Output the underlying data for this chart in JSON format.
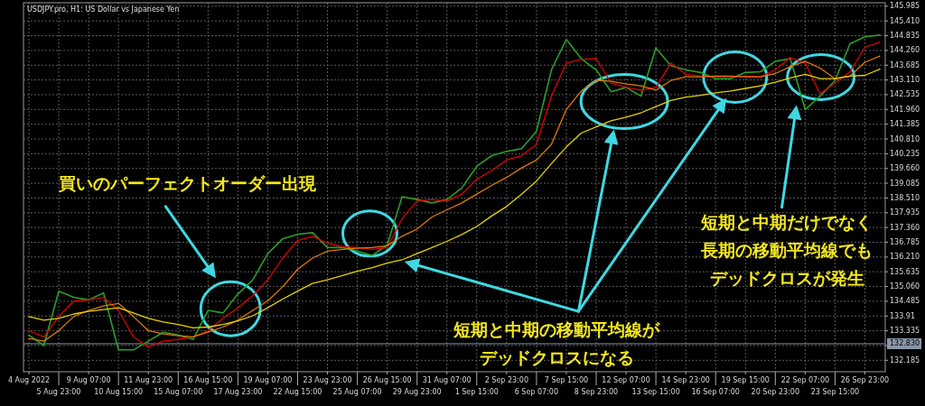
{
  "chart_data": {
    "type": "line",
    "title": "USDJPY.pro, H1:  US Dollar vs Japanese Yen",
    "categories": [
      "4 Aug 2022",
      null,
      "5 Aug 23:00",
      null,
      "9 Aug 07:00",
      null,
      "10 Aug 15:00",
      null,
      "11 Aug 23:00",
      null,
      "15 Aug 07:00",
      null,
      "16 Aug 15:00",
      null,
      "17 Aug 23:00",
      null,
      "19 Aug 07:00",
      null,
      "22 Aug 15:00",
      null,
      "23 Aug 23:00",
      null,
      "25 Aug 07:00",
      null,
      "26 Aug 15:00",
      null,
      "29 Aug 23:00",
      null,
      "31 Aug 07:00",
      null,
      "1 Sep 15:00",
      null,
      "2 Sep 23:00",
      null,
      "6 Sep 07:00",
      null,
      "7 Sep 15:00",
      null,
      "8 Sep 23:00",
      null,
      "12 Sep 07:00",
      null,
      "13 Sep 15:00",
      null,
      "14 Sep 23:00",
      null,
      "16 Sep 07:00",
      null,
      "19 Sep 15:00",
      null,
      "20 Sep 23:00",
      null,
      "22 Sep 07:00",
      null,
      "23 Sep 15:00",
      null,
      "26 Sep 23:00",
      null
    ],
    "series": [
      {
        "color": "#2a9d2a",
        "values": [
          133.17,
          132.76,
          134.88,
          134.64,
          134.54,
          134.81,
          132.59,
          132.59,
          132.93,
          133.28,
          133.17,
          133.0,
          134.13,
          134.03,
          134.77,
          135.32,
          136.34,
          136.92,
          137.09,
          137.16,
          136.58,
          136.58,
          136.44,
          136.27,
          136.68,
          138.56,
          138.45,
          138.32,
          138.45,
          138.9,
          139.75,
          140.16,
          140.33,
          140.43,
          141.11,
          143.5,
          144.69,
          143.94,
          143.5,
          142.65,
          142.82,
          142.48,
          144.35,
          143.67,
          143.5,
          143.4,
          143.16,
          143.16,
          143.4,
          143.43,
          143.84,
          143.94,
          141.96,
          142.48,
          143.09,
          144.52,
          144.79,
          144.86
        ]
      },
      {
        "color": "#e00000",
        "values": [
          133.34,
          133.1,
          133.89,
          134.5,
          134.54,
          134.64,
          134.13,
          133.1,
          132.7,
          132.93,
          133.0,
          133.1,
          133.34,
          133.82,
          134.23,
          134.71,
          135.32,
          136.17,
          136.85,
          137.02,
          136.75,
          136.61,
          136.58,
          136.51,
          136.58,
          137.71,
          138.39,
          138.45,
          138.39,
          138.66,
          139.24,
          139.58,
          139.99,
          140.16,
          140.6,
          142.48,
          143.77,
          143.91,
          143.94,
          142.99,
          142.82,
          142.71,
          142.82,
          143.77,
          143.33,
          143.26,
          143.23,
          143.23,
          143.26,
          143.23,
          143.5,
          143.98,
          143.77,
          142.58,
          142.99,
          143.43,
          144.38,
          144.59
        ]
      },
      {
        "color": "#e07a00",
        "values": [
          133.04,
          132.93,
          133.34,
          133.89,
          134.13,
          134.3,
          134.4,
          133.89,
          133.34,
          133.21,
          133.14,
          133.1,
          133.28,
          133.48,
          133.75,
          134.13,
          134.5,
          135.05,
          135.73,
          136.17,
          136.44,
          136.51,
          136.55,
          136.58,
          136.65,
          137.02,
          137.3,
          137.77,
          138.05,
          138.32,
          138.66,
          139.0,
          139.31,
          139.68,
          139.99,
          140.6,
          141.96,
          142.68,
          143.09,
          143.06,
          142.95,
          142.88,
          142.71,
          143.09,
          143.23,
          143.23,
          143.26,
          143.26,
          143.23,
          143.23,
          143.36,
          143.63,
          143.84,
          143.57,
          143.16,
          143.26,
          143.8,
          144.04
        ]
      },
      {
        "color": "#e6d200",
        "values": [
          133.89,
          133.75,
          133.82,
          133.99,
          134.09,
          134.16,
          134.23,
          134.03,
          133.82,
          133.68,
          133.58,
          133.45,
          133.48,
          133.58,
          133.72,
          133.92,
          134.23,
          134.57,
          134.88,
          135.18,
          135.32,
          135.49,
          135.66,
          135.8,
          135.97,
          136.1,
          136.34,
          136.58,
          136.82,
          137.09,
          137.4,
          137.81,
          138.18,
          138.66,
          139.17,
          139.85,
          140.5,
          141.04,
          141.28,
          141.52,
          141.66,
          141.83,
          142.07,
          142.31,
          142.44,
          142.51,
          142.61,
          142.68,
          142.78,
          142.88,
          143.02,
          143.19,
          143.33,
          143.16,
          143.16,
          143.26,
          143.29,
          143.53
        ]
      }
    ],
    "ylim": [
      131.74,
      146.12
    ],
    "yticks": [
      132.185,
      {
        "value": 132.76,
        "label": null
      },
      133.335,
      133.91,
      134.485,
      {
        "value": 135.06,
        "label": "135.060"
      },
      135.635,
      {
        "value": 136.21,
        "label": "136.210"
      },
      136.785,
      {
        "value": 137.36,
        "label": "137.360"
      },
      137.935,
      {
        "value": 138.51,
        "label": "138.510"
      },
      139.085,
      {
        "value": 139.66,
        "label": "139.660"
      },
      140.235,
      {
        "value": 140.81,
        "label": "140.810"
      },
      141.385,
      {
        "value": 141.96,
        "label": "141.960"
      },
      142.535,
      {
        "value": 143.11,
        "label": "143.110"
      },
      143.685,
      {
        "value": 144.26,
        "label": "144.260"
      },
      144.835,
      {
        "value": 145.41,
        "label": "145.410"
      },
      145.985
    ],
    "grid": true,
    "line_style": "solid",
    "ref_lines": [
      {
        "axis": "y",
        "value": 132.83,
        "label": "132.830",
        "color": "#8a96a8"
      }
    ],
    "annotations": [
      "買いのパーフェクトオーダー出現",
      "短期と中期の移動平均線がデッドクロスになる",
      "短期と中期だけでなく長期の移動平均線でもデッドクロスが発生"
    ]
  }
}
